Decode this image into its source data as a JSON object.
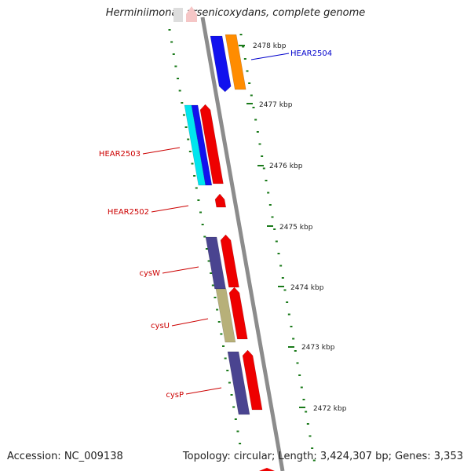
{
  "title": "Herminiimonas arsenicoxydans, complete genome",
  "footer": {
    "accession": "Accession: NC_009138",
    "summary": "Topology: circular; Length: 3,424,307 bp; Genes: 3,353"
  },
  "scale": {
    "ticks": [
      "2478 kbp",
      "2477 kbp",
      "2476 kbp",
      "2475 kbp",
      "2474 kbp",
      "2473 kbp",
      "2472 kbp"
    ]
  },
  "genes": [
    {
      "label": "HEAR2504",
      "color": "#0000cc"
    },
    {
      "label": "HEAR2503",
      "color": "#cc0000"
    },
    {
      "label": "HEAR2502",
      "color": "#cc0000"
    },
    {
      "label": "cysW",
      "color": "#cc0000"
    },
    {
      "label": "cysU",
      "color": "#cc0000"
    },
    {
      "label": "cysP",
      "color": "#cc0000"
    }
  ],
  "colors": {
    "backbone": "#8c8c8c",
    "tick": "#1a7a1a",
    "blue": "#1111ee",
    "orange": "#ff8c00",
    "cyan": "#00e5ee",
    "red": "#ee0000",
    "slate": "#4a4490",
    "olive": "#b7b079"
  }
}
